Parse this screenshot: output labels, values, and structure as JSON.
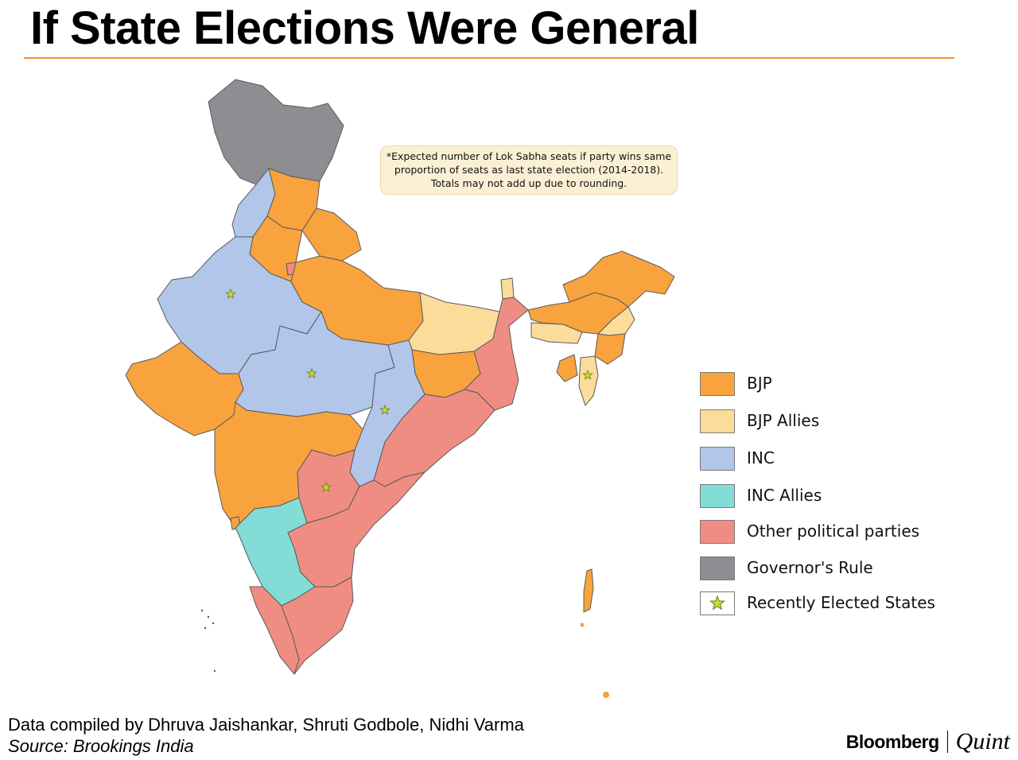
{
  "title": "If State Elections Were General",
  "note": {
    "line1": "*Expected number of Lok Sabha seats if party wins same",
    "line2": "proportion of seats as last state election (2014-2018).",
    "line3": "Totals may not add up due to rounding."
  },
  "legend": [
    {
      "label": "BJP",
      "color": "#f8a33d"
    },
    {
      "label": "BJP Allies",
      "color": "#fbdc9a"
    },
    {
      "label": "INC",
      "color": "#b1c6e9"
    },
    {
      "label": "INC Allies",
      "color": "#83dcd6"
    },
    {
      "label": "Other political parties",
      "color": "#f08d82"
    },
    {
      "label": "Governor's Rule",
      "color": "#8e8e92"
    },
    {
      "label": "Recently Elected States",
      "icon": "star-icon",
      "color": "#c7d63a"
    }
  ],
  "colors": {
    "bjp": "#f8a33d",
    "bjp_allies": "#fbdc9a",
    "inc": "#b1c6e9",
    "inc_allies": "#83dcd6",
    "other": "#f08d82",
    "governor": "#8e8e92",
    "star": "#c7d63a",
    "accent": "#e8953a"
  },
  "credits": {
    "compiled": "Data compiled by Dhruva Jaishankar, Shruti Godbole, Nidhi Varma",
    "source": "Source: Brookings India"
  },
  "brand": {
    "primary": "Bloomberg",
    "secondary": "Quint"
  }
}
